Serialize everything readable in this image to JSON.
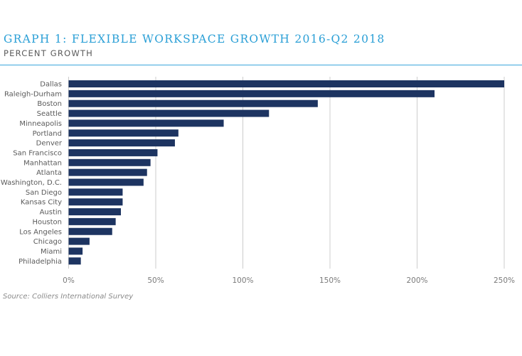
{
  "chart_data": {
    "type": "bar",
    "orientation": "horizontal",
    "title": "GRAPH 1: FLEXIBLE WORKSPACE GROWTH 2016-Q2 2018",
    "subtitle": "PERCENT GROWTH",
    "xlabel": "",
    "ylabel": "",
    "categories": [
      "Dallas",
      "Raleigh-Durham",
      "Boston",
      "Seattle",
      "Minneapolis",
      "Portland",
      "Denver",
      "San Francisco",
      "Manhattan",
      "Atlanta",
      "Washington, D.C.",
      "San Diego",
      "Kansas City",
      "Austin",
      "Houston",
      "Los Angeles",
      "Chicago",
      "Miami",
      "Philadelphia"
    ],
    "values": [
      250,
      210,
      143,
      115,
      89,
      63,
      61,
      51,
      47,
      45,
      43,
      31,
      31,
      30,
      27,
      25,
      12,
      8,
      7
    ],
    "unit": "%",
    "xlim": [
      0,
      250
    ],
    "xticks": [
      0,
      50,
      100,
      150,
      200,
      250
    ],
    "xtick_labels": [
      "0%",
      "50%",
      "100%",
      "150%",
      "200%",
      "250%"
    ],
    "grid": true,
    "legend": "none",
    "bar_color": "#1d3461",
    "source": "Source: Colliers International Survey"
  },
  "colors": {
    "title": "#2a9fd6",
    "rule": "#3aa6dc",
    "bar": "#1d3461",
    "grid": "#cccccc"
  }
}
